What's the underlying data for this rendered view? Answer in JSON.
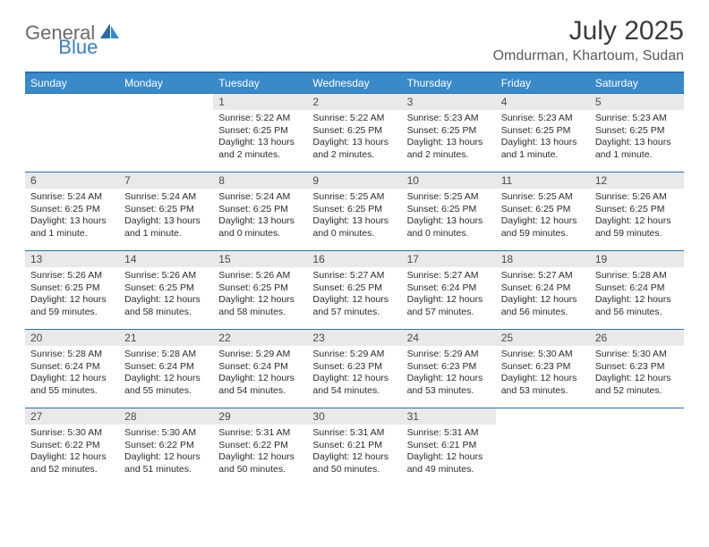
{
  "logo": {
    "text1": "General",
    "text2": "Blue"
  },
  "title": "July 2025",
  "location": "Omdurman, Khartoum, Sudan",
  "colors": {
    "header_bg": "#3a8ac9",
    "header_border": "#2f6fa8",
    "daynum_bg": "#e9e9e9",
    "text_dark": "#2b2b2b",
    "logo_gray": "#6b6b6b",
    "logo_blue": "#3a7ebf"
  },
  "day_headers": [
    "Sunday",
    "Monday",
    "Tuesday",
    "Wednesday",
    "Thursday",
    "Friday",
    "Saturday"
  ],
  "weeks": [
    [
      {
        "n": "",
        "sr": "",
        "ss": "",
        "dl": "",
        "empty": true
      },
      {
        "n": "",
        "sr": "",
        "ss": "",
        "dl": "",
        "empty": true
      },
      {
        "n": "1",
        "sr": "Sunrise: 5:22 AM",
        "ss": "Sunset: 6:25 PM",
        "dl": "Daylight: 13 hours and 2 minutes."
      },
      {
        "n": "2",
        "sr": "Sunrise: 5:22 AM",
        "ss": "Sunset: 6:25 PM",
        "dl": "Daylight: 13 hours and 2 minutes."
      },
      {
        "n": "3",
        "sr": "Sunrise: 5:23 AM",
        "ss": "Sunset: 6:25 PM",
        "dl": "Daylight: 13 hours and 2 minutes."
      },
      {
        "n": "4",
        "sr": "Sunrise: 5:23 AM",
        "ss": "Sunset: 6:25 PM",
        "dl": "Daylight: 13 hours and 1 minute."
      },
      {
        "n": "5",
        "sr": "Sunrise: 5:23 AM",
        "ss": "Sunset: 6:25 PM",
        "dl": "Daylight: 13 hours and 1 minute."
      }
    ],
    [
      {
        "n": "6",
        "sr": "Sunrise: 5:24 AM",
        "ss": "Sunset: 6:25 PM",
        "dl": "Daylight: 13 hours and 1 minute."
      },
      {
        "n": "7",
        "sr": "Sunrise: 5:24 AM",
        "ss": "Sunset: 6:25 PM",
        "dl": "Daylight: 13 hours and 1 minute."
      },
      {
        "n": "8",
        "sr": "Sunrise: 5:24 AM",
        "ss": "Sunset: 6:25 PM",
        "dl": "Daylight: 13 hours and 0 minutes."
      },
      {
        "n": "9",
        "sr": "Sunrise: 5:25 AM",
        "ss": "Sunset: 6:25 PM",
        "dl": "Daylight: 13 hours and 0 minutes."
      },
      {
        "n": "10",
        "sr": "Sunrise: 5:25 AM",
        "ss": "Sunset: 6:25 PM",
        "dl": "Daylight: 13 hours and 0 minutes."
      },
      {
        "n": "11",
        "sr": "Sunrise: 5:25 AM",
        "ss": "Sunset: 6:25 PM",
        "dl": "Daylight: 12 hours and 59 minutes."
      },
      {
        "n": "12",
        "sr": "Sunrise: 5:26 AM",
        "ss": "Sunset: 6:25 PM",
        "dl": "Daylight: 12 hours and 59 minutes."
      }
    ],
    [
      {
        "n": "13",
        "sr": "Sunrise: 5:26 AM",
        "ss": "Sunset: 6:25 PM",
        "dl": "Daylight: 12 hours and 59 minutes."
      },
      {
        "n": "14",
        "sr": "Sunrise: 5:26 AM",
        "ss": "Sunset: 6:25 PM",
        "dl": "Daylight: 12 hours and 58 minutes."
      },
      {
        "n": "15",
        "sr": "Sunrise: 5:26 AM",
        "ss": "Sunset: 6:25 PM",
        "dl": "Daylight: 12 hours and 58 minutes."
      },
      {
        "n": "16",
        "sr": "Sunrise: 5:27 AM",
        "ss": "Sunset: 6:25 PM",
        "dl": "Daylight: 12 hours and 57 minutes."
      },
      {
        "n": "17",
        "sr": "Sunrise: 5:27 AM",
        "ss": "Sunset: 6:24 PM",
        "dl": "Daylight: 12 hours and 57 minutes."
      },
      {
        "n": "18",
        "sr": "Sunrise: 5:27 AM",
        "ss": "Sunset: 6:24 PM",
        "dl": "Daylight: 12 hours and 56 minutes."
      },
      {
        "n": "19",
        "sr": "Sunrise: 5:28 AM",
        "ss": "Sunset: 6:24 PM",
        "dl": "Daylight: 12 hours and 56 minutes."
      }
    ],
    [
      {
        "n": "20",
        "sr": "Sunrise: 5:28 AM",
        "ss": "Sunset: 6:24 PM",
        "dl": "Daylight: 12 hours and 55 minutes."
      },
      {
        "n": "21",
        "sr": "Sunrise: 5:28 AM",
        "ss": "Sunset: 6:24 PM",
        "dl": "Daylight: 12 hours and 55 minutes."
      },
      {
        "n": "22",
        "sr": "Sunrise: 5:29 AM",
        "ss": "Sunset: 6:24 PM",
        "dl": "Daylight: 12 hours and 54 minutes."
      },
      {
        "n": "23",
        "sr": "Sunrise: 5:29 AM",
        "ss": "Sunset: 6:23 PM",
        "dl": "Daylight: 12 hours and 54 minutes."
      },
      {
        "n": "24",
        "sr": "Sunrise: 5:29 AM",
        "ss": "Sunset: 6:23 PM",
        "dl": "Daylight: 12 hours and 53 minutes."
      },
      {
        "n": "25",
        "sr": "Sunrise: 5:30 AM",
        "ss": "Sunset: 6:23 PM",
        "dl": "Daylight: 12 hours and 53 minutes."
      },
      {
        "n": "26",
        "sr": "Sunrise: 5:30 AM",
        "ss": "Sunset: 6:23 PM",
        "dl": "Daylight: 12 hours and 52 minutes."
      }
    ],
    [
      {
        "n": "27",
        "sr": "Sunrise: 5:30 AM",
        "ss": "Sunset: 6:22 PM",
        "dl": "Daylight: 12 hours and 52 minutes."
      },
      {
        "n": "28",
        "sr": "Sunrise: 5:30 AM",
        "ss": "Sunset: 6:22 PM",
        "dl": "Daylight: 12 hours and 51 minutes."
      },
      {
        "n": "29",
        "sr": "Sunrise: 5:31 AM",
        "ss": "Sunset: 6:22 PM",
        "dl": "Daylight: 12 hours and 50 minutes."
      },
      {
        "n": "30",
        "sr": "Sunrise: 5:31 AM",
        "ss": "Sunset: 6:21 PM",
        "dl": "Daylight: 12 hours and 50 minutes."
      },
      {
        "n": "31",
        "sr": "Sunrise: 5:31 AM",
        "ss": "Sunset: 6:21 PM",
        "dl": "Daylight: 12 hours and 49 minutes."
      },
      {
        "n": "",
        "sr": "",
        "ss": "",
        "dl": "",
        "empty": true
      },
      {
        "n": "",
        "sr": "",
        "ss": "",
        "dl": "",
        "empty": true
      }
    ]
  ]
}
